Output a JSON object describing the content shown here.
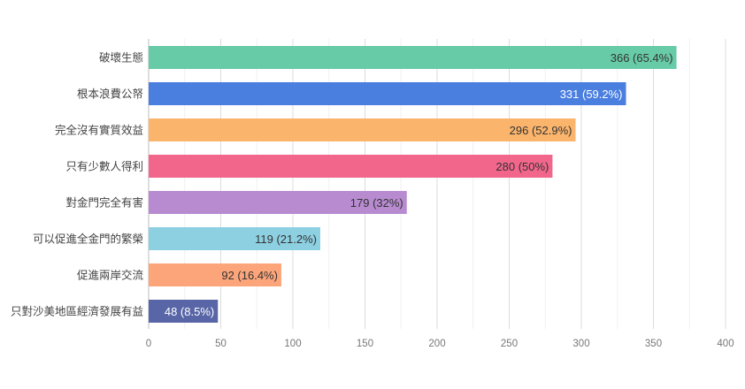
{
  "chart_data": {
    "type": "bar",
    "orientation": "horizontal",
    "categories": [
      "破壞生態",
      "根本浪費公帑",
      "完全沒有實質效益",
      "只有少數人得利",
      "對金門完全有害",
      "可以促進全金門的繁榮",
      "促進兩岸交流",
      "只對沙美地區經濟發展有益"
    ],
    "values": [
      366,
      331,
      296,
      280,
      179,
      119,
      92,
      48
    ],
    "data_labels": [
      "366 (65.4%)",
      "331 (59.2%)",
      "296 (52.9%)",
      "280 (50%)",
      "179 (32%)",
      "119 (21.2%)",
      "92 (16.4%)",
      "48 (8.5%)"
    ],
    "colors": [
      "#68cba7",
      "#4a7fe0",
      "#fbb46b",
      "#f2668c",
      "#b88bd1",
      "#8dd0e2",
      "#fca57a",
      "#5865a6"
    ],
    "label_colors": [
      "#333333",
      "#ffffff",
      "#333333",
      "#333333",
      "#333333",
      "#333333",
      "#333333",
      "#ffffff"
    ],
    "xlim": [
      0,
      400
    ],
    "xticks": [
      0,
      50,
      100,
      150,
      200,
      250,
      300,
      350,
      400
    ],
    "minor_grid_step": 25,
    "grid": true,
    "title": "",
    "xlabel": "",
    "ylabel": ""
  }
}
